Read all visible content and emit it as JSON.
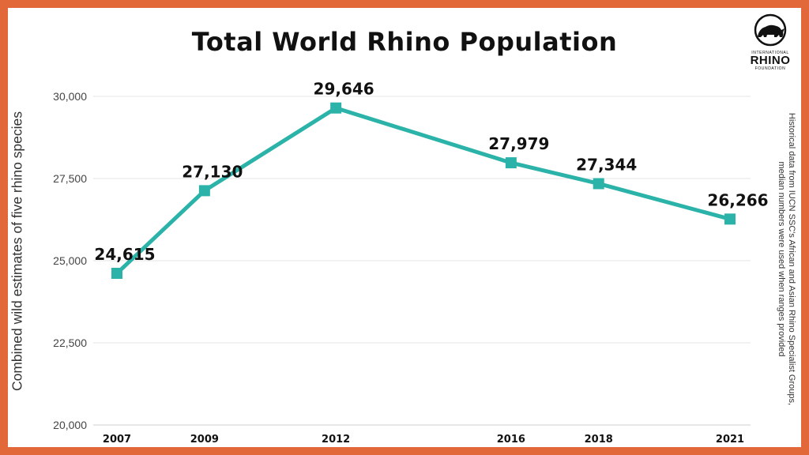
{
  "title": "Total World Rhino Population",
  "logo": {
    "top_text": "INTERNATIONAL",
    "main_text": "RHINO",
    "bottom_text": "FOUNDATION"
  },
  "note": "Historical data from IUCN SSC's African and Asian Rhino Specialist Groups, median numbers were used when ranges provided",
  "colors": {
    "border": "#E2683A",
    "line": "#2BB3A9",
    "grid": "#e4e4e4"
  },
  "chart_data": {
    "type": "line",
    "title": "Total World Rhino Population",
    "xlabel": "",
    "ylabel": "Combined wild estimates of five rhino species",
    "x": [
      2007,
      2009,
      2012,
      2016,
      2018,
      2021
    ],
    "x_tick_labels": [
      "2007",
      "2009",
      "2012",
      "2016",
      "2018",
      "2021"
    ],
    "series": [
      {
        "values": [
          24615,
          27130,
          29646,
          27979,
          27344,
          26266
        ],
        "data_labels": [
          "24,615",
          "27,130",
          "29,646",
          "27,979",
          "27,344",
          "26,266"
        ],
        "marker": "square"
      }
    ],
    "ylim": [
      20000,
      30000
    ],
    "y_ticks": [
      20000,
      22500,
      25000,
      27500,
      30000
    ],
    "y_tick_labels": [
      "20,000",
      "22,500",
      "25,000",
      "27,500",
      "30,000"
    ],
    "grid": true,
    "legend": "none"
  }
}
